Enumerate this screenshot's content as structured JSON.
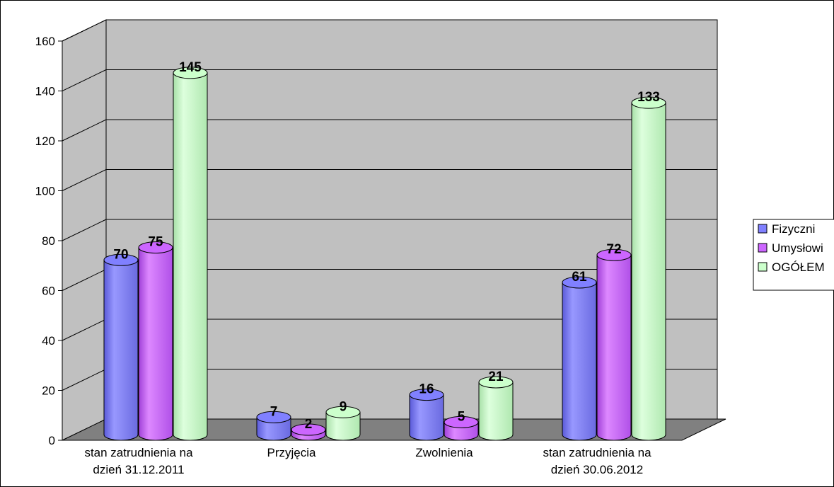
{
  "chart_data": {
    "type": "bar",
    "style": "3d-cylinder",
    "categories": [
      [
        "stan zatrudnienia na",
        "dzień 31.12.2011"
      ],
      [
        "Przyjęcia"
      ],
      [
        "Zwolnienia"
      ],
      [
        "stan zatrudnienia na",
        "dzień 30.06.2012"
      ]
    ],
    "series": [
      {
        "name": "Fizyczni",
        "values": [
          70,
          7,
          16,
          61
        ],
        "color": "#8080ff"
      },
      {
        "name": "Umysłowi",
        "values": [
          75,
          2,
          5,
          72
        ],
        "color": "#cc66ff"
      },
      {
        "name": "OGÓŁEM",
        "values": [
          145,
          9,
          21,
          133
        ],
        "color": "#ccffcc"
      }
    ],
    "yticks": [
      0,
      20,
      40,
      60,
      80,
      100,
      120,
      140,
      160
    ],
    "ylim": [
      0,
      160
    ],
    "grid": true,
    "wall_color": "#c0c0c0",
    "floor_color": "#808080",
    "legend_position": "right",
    "data_labels": true
  }
}
